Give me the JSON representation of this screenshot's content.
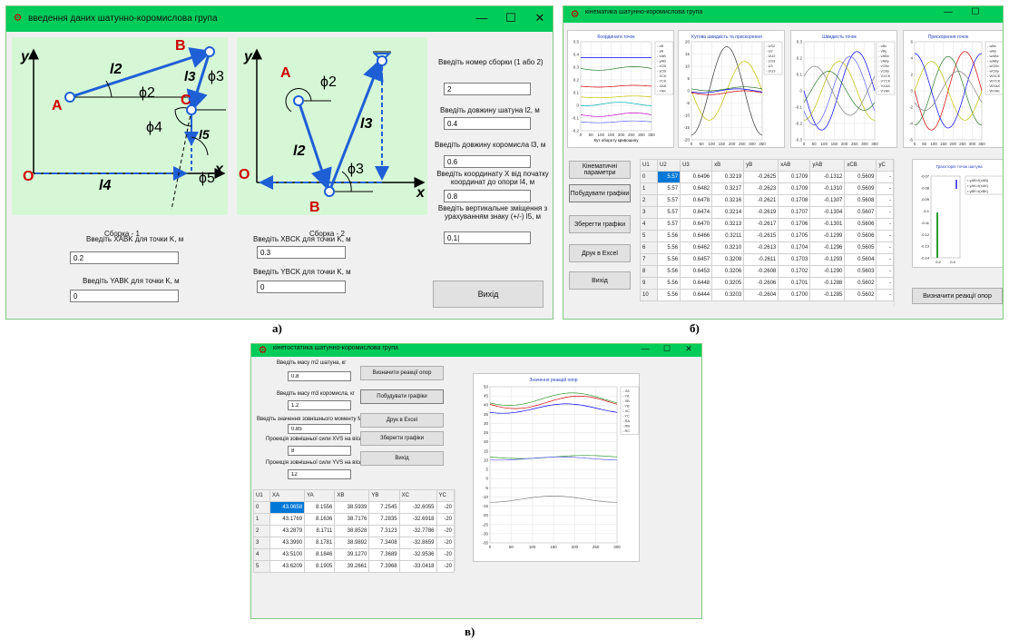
{
  "captions": {
    "a": "а)",
    "b": "б)",
    "c": "в)"
  },
  "winA": {
    "title": "введення даних шатунно-коромислова група",
    "controls": [
      "—",
      "☐",
      "✕"
    ],
    "d1": {
      "A": "A",
      "B": "B",
      "C": "C",
      "O": "O",
      "x": "x",
      "y": "y",
      "l2": "l2",
      "l3": "l3",
      "l4": "l4",
      "l5": "l5",
      "phi2": "ϕ2",
      "phi3": "ϕ3",
      "phi4": "ϕ4",
      "phi5": "ϕ5"
    },
    "d2": {
      "A": "A",
      "B": "B",
      "O": "O",
      "x": "x",
      "y": "y",
      "l2": "l2",
      "l3": "l3",
      "phi2": "ϕ2",
      "phi3": "ϕ3"
    },
    "caption1": "Сборка - 1",
    "caption2": "Сборка - 2",
    "q_assembly": "Введіть номер сборки (1 або 2)",
    "v_assembly": "2",
    "q_l2": "Введіть довжину шатуна l2, м",
    "v_l2": "0.4",
    "q_l3": "Введіть довжину коромисла l3, м",
    "v_l3": "0.6",
    "q_l4": "Введіть координату X від початку координат до опори l4, м",
    "v_l4": "0.8",
    "q_l5": "Введіть вертикальне зміщення з урахуванням знаку (+/-) l5, м",
    "v_l5": "0.1|",
    "q_xabk": "Введіть XABK для точки K, м",
    "v_xabk": "0.2",
    "q_yabk": "Введіть YABK для точки K, м",
    "v_yabk": "0",
    "q_xbck": "Введіть XBCK для точки K, м",
    "v_xbck": "0.3",
    "q_ybck": "Введіть YBCK для точки K, м",
    "v_ybck": "0",
    "exit": "Вихід"
  },
  "winB": {
    "title": "кінематика шатунно-коромислова група",
    "controls": [
      "—",
      "☐"
    ],
    "buttons": {
      "params": "Кінематичні параметри",
      "plot": "Побудувати графіки",
      "save": "Зберегти графіки",
      "excel": "Друк в Excel",
      "exit": "Вихід",
      "reactions": "Визначити реакції опор"
    },
    "charts": [
      {
        "title": "Координати точок",
        "xlabel": "Кут обороту кривошипу",
        "xticks": [
          "0",
          "50",
          "100",
          "150",
          "200",
          "250",
          "300",
          "350"
        ],
        "yticks": [
          "0.5",
          "0.4",
          "0.3",
          "0.2",
          "0.1",
          "0",
          "-0.1",
          "-0.2"
        ],
        "legend": [
          "xB",
          "yB",
          "xAB",
          "yAB",
          "xCB",
          "yCB",
          "XCK",
          "YCK",
          "XAK",
          "YAK"
        ]
      },
      {
        "title": "Кутова швидкість та прискорення",
        "xlabel": "",
        "xticks": [
          "0",
          "50",
          "100",
          "150",
          "200",
          "250",
          "300",
          "350"
        ],
        "yticks": [
          "20",
          "15",
          "10",
          "5",
          "0",
          "-5",
          "-10",
          "-15",
          "-20"
        ],
        "legend": [
          "US2",
          "U2",
          "UU2",
          "US3",
          "U3",
          "UU3"
        ]
      },
      {
        "title": "Швидкість точок",
        "xlabel": "",
        "xticks": [
          "0",
          "50",
          "100",
          "150",
          "200",
          "250",
          "300",
          "350"
        ],
        "yticks": [
          "0.3",
          "0.2",
          "0.1",
          "0",
          "-0.1",
          "-0.2",
          "-0.3"
        ],
        "legend": [
          "vBx",
          "vBy",
          "vABx",
          "vABy",
          "vCBx",
          "vCBy",
          "VXCK",
          "VYCK",
          "VXAK",
          "VYAK"
        ]
      },
      {
        "title": "Прискорення точок",
        "xlabel": "",
        "xticks": [
          "0",
          "50",
          "100",
          "150",
          "200",
          "250",
          "300",
          "350"
        ],
        "yticks": [
          "6",
          "4",
          "2",
          "0",
          "-2",
          "-4",
          "-6"
        ],
        "legend": [
          "wBx",
          "wBy",
          "wABx",
          "wABy",
          "wCBx",
          "wCBy",
          "WXCK",
          "WYCK",
          "WXAK",
          "WYAK"
        ]
      }
    ],
    "traj": {
      "title": "Траєкторія точок шатуна",
      "yticks": [
        "-0.07",
        "-0.08",
        "-0.09",
        "-0.1",
        "-0.11",
        "-0.12",
        "-0.13",
        "-0.14"
      ],
      "xticks": [
        "0.2",
        "0.4"
      ],
      "legend": [
        "yAB=f(xAB)",
        "yAK=f(xAK)",
        "yBK=f(xBK)"
      ]
    },
    "table": {
      "headers": [
        "U1",
        "U2",
        "U3",
        "xB",
        "yB",
        "xAB",
        "yAB",
        "xCB",
        "yC"
      ],
      "rows": [
        [
          "0",
          "5.57",
          "0.6496",
          "0.3219",
          "-0.2625",
          "0.1709",
          "-0.1312",
          "0.5609",
          "-"
        ],
        [
          "1",
          "5.57",
          "0.6482",
          "0.3217",
          "-0.2623",
          "0.1709",
          "-0.1310",
          "0.5609",
          "-"
        ],
        [
          "2",
          "5.57",
          "0.6478",
          "0.3216",
          "-0.2621",
          "0.1708",
          "-0.1307",
          "0.5608",
          "-"
        ],
        [
          "3",
          "5.57",
          "0.6474",
          "0.3214",
          "-0.2619",
          "0.1707",
          "-0.1304",
          "0.5607",
          "-"
        ],
        [
          "4",
          "5.57",
          "0.6470",
          "0.3213",
          "-0.2617",
          "0.1706",
          "-0.1301",
          "0.5606",
          "-"
        ],
        [
          "5",
          "5.56",
          "0.6466",
          "0.3211",
          "-0.2615",
          "0.1705",
          "-0.1299",
          "0.5606",
          "-"
        ],
        [
          "6",
          "5.56",
          "0.6462",
          "0.3210",
          "-0.2613",
          "0.1704",
          "-0.1296",
          "0.5605",
          "-"
        ],
        [
          "7",
          "5.56",
          "0.6457",
          "0.3208",
          "-0.2611",
          "0.1703",
          "-0.1293",
          "0.5604",
          "-"
        ],
        [
          "8",
          "5.56",
          "0.6453",
          "0.3206",
          "-0.2608",
          "0.1702",
          "-0.1290",
          "0.5603",
          "-"
        ],
        [
          "9",
          "5.56",
          "0.6448",
          "0.3205",
          "-0.2606",
          "0.1701",
          "-0.1288",
          "0.5602",
          "-"
        ],
        [
          "10",
          "5.56",
          "0.6444",
          "0.3203",
          "-0.2604",
          "0.1700",
          "-0.1285",
          "0.5602",
          "-"
        ]
      ]
    }
  },
  "winC": {
    "title": "кінетостатика шатунно-коромислова група",
    "controls": [
      "—",
      "☐",
      "✕"
    ],
    "q_m2": "Введіть масу m2 шатуна, кг",
    "v_m2": "0.8",
    "q_m3": "Введіть масу m3 коромисла, кг",
    "v_m3": "1.2",
    "q_mvs": "Введіть значення зовнішнього моменту MVS, Нм",
    "v_mvs": "0.85",
    "q_xvs": "Проекція зовнішньої сили XVS на вісь X, Н",
    "v_xvs": "8",
    "q_yvs": "Проекція зовнішньої сили YVS на вісь Y, Н",
    "v_yvs": "12",
    "buttons": {
      "reactions": "Визначити реакції опор",
      "plot": "Побудувати графіки",
      "excel": "Друк в Excel",
      "save": "Зберегти графіки",
      "exit": "Вихід"
    },
    "table": {
      "headers": [
        "U1",
        "XA",
        "YA",
        "XB",
        "YB",
        "XC",
        "YC"
      ],
      "rows": [
        [
          "0",
          "43.0658",
          "8.1556",
          "38.5939",
          "7.2545",
          "-32.6055",
          "-20"
        ],
        [
          "1",
          "43.1769",
          "8.1636",
          "38.7176",
          "7.2835",
          "-32.6918",
          "-20"
        ],
        [
          "2",
          "43.2879",
          "8.1711",
          "38.8528",
          "7.3123",
          "-32.7786",
          "-20"
        ],
        [
          "3",
          "43.3990",
          "8.1781",
          "38.9892",
          "7.3408",
          "-32.8659",
          "-20"
        ],
        [
          "4",
          "43.5100",
          "8.1846",
          "39.1270",
          "7.3689",
          "-32.9536",
          "-20"
        ],
        [
          "5",
          "43.6209",
          "8.1905",
          "39.2661",
          "7.3968",
          "-33.0418",
          "-20"
        ]
      ]
    },
    "chart": {
      "title": "Значення реакцій опор",
      "yticks": [
        "50",
        "45",
        "40",
        "35",
        "30",
        "25",
        "20",
        "15",
        "10",
        "5",
        "0",
        "-5",
        "-10",
        "-15",
        "-20",
        "-25",
        "-30",
        "-35"
      ],
      "xticks": [
        "0",
        "50",
        "100",
        "150",
        "200",
        "250",
        "300"
      ],
      "legend": [
        "XA",
        "YA",
        "XB",
        "YB",
        "XC",
        "YC",
        "RA",
        "RB",
        "RC"
      ]
    }
  },
  "colors": {
    "titlebar": "#00cc5a",
    "panel": "#d6f7d6",
    "link": "#1f5fd6",
    "accent": "#d00000",
    "select": "#0078d7"
  }
}
